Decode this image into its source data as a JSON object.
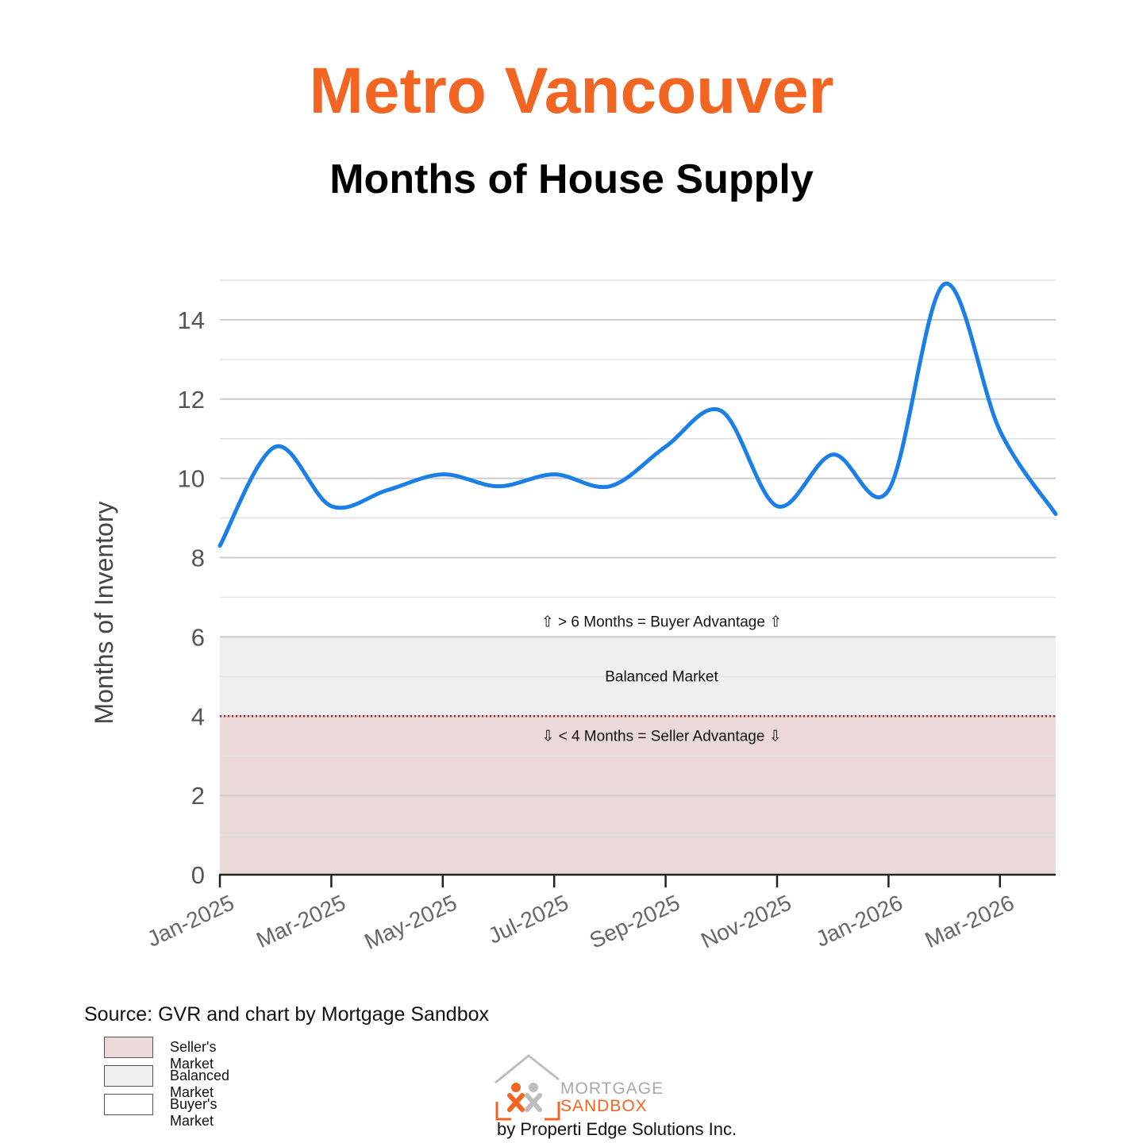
{
  "header": {
    "title": "Metro Vancouver",
    "subtitle": "Months of House Supply",
    "title_color": "#f26522"
  },
  "chart_data": {
    "type": "line",
    "title": "Metro Vancouver",
    "subtitle": "Months of House Supply",
    "xlabel": "",
    "ylabel": "Months of Inventory",
    "ylim": [
      0,
      15
    ],
    "yticks": [
      0,
      2,
      4,
      6,
      8,
      10,
      12,
      14
    ],
    "x_tick_labels": [
      "Jan-2025",
      "Mar-2025",
      "May-2025",
      "Jul-2025",
      "Sep-2025",
      "Nov-2025",
      "Jan-2026",
      "Mar-2026"
    ],
    "x": [
      "Jan-2025",
      "Feb-2025",
      "Mar-2025",
      "Apr-2025",
      "May-2025",
      "Jun-2025",
      "Jul-2025",
      "Aug-2025",
      "Sep-2025",
      "Oct-2025",
      "Nov-2025",
      "Dec-2025",
      "Jan-2026",
      "Feb-2026",
      "Mar-2026",
      "Apr-2026"
    ],
    "series": [
      {
        "name": "",
        "color": "#1a7fe6",
        "values": [
          8.3,
          10.8,
          9.3,
          9.7,
          10.1,
          9.8,
          10.1,
          9.8,
          10.8,
          11.7,
          9.3,
          10.6,
          9.7,
          14.9,
          11.2,
          9.1
        ]
      }
    ],
    "grid": true,
    "bands": [
      {
        "name": "Seller's Market",
        "from": 0,
        "to": 4,
        "color": "#ebd9d9"
      },
      {
        "name": "Balanced Market",
        "from": 4,
        "to": 6,
        "color": "#efefef"
      },
      {
        "name": "Buyer's Market",
        "from": 6,
        "to": 15,
        "color": "#ffffff"
      }
    ],
    "threshold_line": {
      "value": 4,
      "color": "#b22222",
      "style": "dotted"
    },
    "annotations": {
      "buyer": "⇧ > 6 Months = Buyer Advantage ⇧",
      "balanced": "Balanced Market",
      "seller": "⇩ < 4 Months = Seller Advantage ⇩"
    },
    "legend_position": "bottom-left"
  },
  "footer": {
    "source": "Source: GVR and chart by Mortgage Sandbox",
    "legend": [
      {
        "label": "Seller's Market",
        "color": "#ebd9d9"
      },
      {
        "label": "Balanced Market",
        "color": "#efefef"
      },
      {
        "label": "Buyer's Market",
        "color": "#ffffff"
      }
    ],
    "logo_line1": "MORTGAGE",
    "logo_line2": "SANDBOX",
    "byline": "by Properti Edge Solutions Inc."
  }
}
